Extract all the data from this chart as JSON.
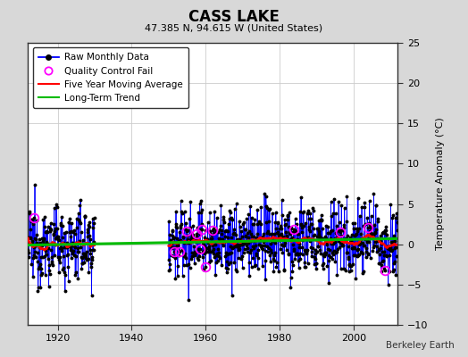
{
  "title": "CASS LAKE",
  "subtitle": "47.385 N, 94.615 W (United States)",
  "ylabel": "Temperature Anomaly (°C)",
  "credit": "Berkeley Earth",
  "xlim": [
    1912,
    2012
  ],
  "ylim": [
    -10,
    25
  ],
  "yticks": [
    -10,
    -5,
    0,
    5,
    10,
    15,
    20,
    25
  ],
  "xticks": [
    1920,
    1940,
    1960,
    1980,
    2000
  ],
  "year_start": 1912,
  "year_end": 2011,
  "background_color": "#d8d8d8",
  "plot_bg_color": "#ffffff",
  "raw_line_color": "#0000ff",
  "raw_dot_color": "#000000",
  "moving_avg_color": "#ff0000",
  "trend_color": "#00bb00",
  "qc_fail_color": "#ff00ff",
  "seed": 12345,
  "noise_std": 2.8,
  "trend_slope": 0.008,
  "trend_intercept": 0.3,
  "gap_start": 1930,
  "gap_end": 1950
}
